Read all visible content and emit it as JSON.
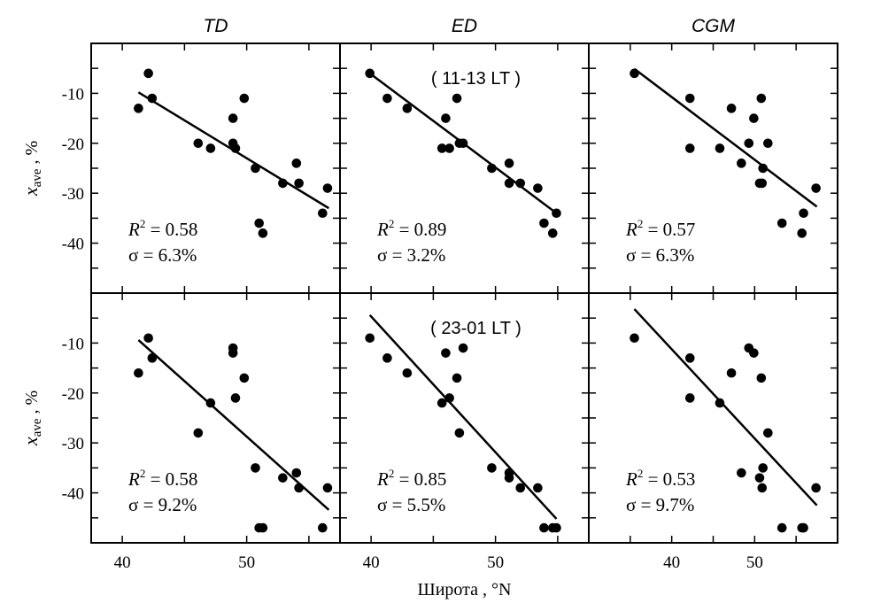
{
  "chart_data": {
    "type": "scatter",
    "layout": "2 rows x 3 columns",
    "column_titles": [
      "TD",
      "ED",
      "CGM"
    ],
    "row_labels": [
      "( 11-13 LT )",
      "( 23-01 LT )"
    ],
    "xlabel": "Широта ,  °N",
    "ylabel": {
      "symbol": "x",
      "subscript": "ave",
      "unit": " ,  %"
    },
    "ylim": [
      -50,
      0
    ],
    "yticks": [
      -10,
      -20,
      -30,
      -40
    ],
    "grid": false,
    "marker_color": "#000000",
    "line_color": "#000000",
    "panels": [
      {
        "column": "TD",
        "row": 0,
        "xlim": [
          37.5,
          57.5
        ],
        "xticks": [
          40,
          50
        ],
        "r2_label": "R",
        "r2_value": " = 0.58",
        "sigma_label": "σ = 6.3%",
        "fit": [
          [
            41.3,
            -9.8
          ],
          [
            56.6,
            -33.0
          ]
        ],
        "points": [
          [
            41.3,
            -13
          ],
          [
            42.1,
            -6
          ],
          [
            42.4,
            -11
          ],
          [
            46.1,
            -20
          ],
          [
            47.1,
            -21
          ],
          [
            48.9,
            -15
          ],
          [
            48.9,
            -20
          ],
          [
            49.1,
            -21
          ],
          [
            49.8,
            -11
          ],
          [
            50.7,
            -25
          ],
          [
            51.0,
            -36
          ],
          [
            51.3,
            -38
          ],
          [
            52.9,
            -28
          ],
          [
            54.0,
            -24
          ],
          [
            54.2,
            -28
          ],
          [
            56.1,
            -34
          ],
          [
            56.5,
            -29
          ]
        ]
      },
      {
        "column": "ED",
        "row": 0,
        "xlim": [
          37.5,
          57.5
        ],
        "xticks": [
          40,
          50
        ],
        "r2_label": "R",
        "r2_value": " = 0.89",
        "sigma_label": "σ = 3.2%",
        "fit": [
          [
            39.9,
            -6.0
          ],
          [
            54.9,
            -34.0
          ]
        ],
        "points": [
          [
            39.9,
            -6
          ],
          [
            41.3,
            -11
          ],
          [
            42.9,
            -13
          ],
          [
            45.7,
            -21
          ],
          [
            46.0,
            -15
          ],
          [
            46.3,
            -21
          ],
          [
            46.9,
            -11
          ],
          [
            47.1,
            -20
          ],
          [
            47.4,
            -20
          ],
          [
            49.7,
            -25
          ],
          [
            51.1,
            -24
          ],
          [
            51.1,
            -28
          ],
          [
            52.0,
            -28
          ],
          [
            53.4,
            -29
          ],
          [
            53.9,
            -36
          ],
          [
            54.6,
            -38
          ],
          [
            54.9,
            -34
          ]
        ]
      },
      {
        "column": "CGM",
        "row": 0,
        "xlim": [
          30,
          60
        ],
        "xticks": [
          40,
          50
        ],
        "r2_label": "R",
        "r2_value": " = 0.57",
        "sigma_label": "σ = 6.3%",
        "fit": [
          [
            35.5,
            -5.1
          ],
          [
            57.5,
            -32.7
          ]
        ],
        "points": [
          [
            35.5,
            -6
          ],
          [
            42.2,
            -11
          ],
          [
            42.2,
            -21
          ],
          [
            45.8,
            -21
          ],
          [
            47.2,
            -13
          ],
          [
            48.4,
            -24
          ],
          [
            49.3,
            -20
          ],
          [
            49.9,
            -15
          ],
          [
            50.8,
            -11
          ],
          [
            51.0,
            -25
          ],
          [
            50.6,
            -28
          ],
          [
            50.9,
            -28
          ],
          [
            51.6,
            -20
          ],
          [
            53.3,
            -36
          ],
          [
            55.7,
            -38
          ],
          [
            55.9,
            -34
          ],
          [
            57.4,
            -29
          ]
        ]
      },
      {
        "column": "TD",
        "row": 1,
        "xlim": [
          37.5,
          57.5
        ],
        "xticks": [
          40,
          50
        ],
        "r2_label": "R",
        "r2_value": " = 0.58",
        "sigma_label": "σ = 9.2%",
        "fit": [
          [
            41.3,
            -9.4
          ],
          [
            56.6,
            -43.4
          ]
        ],
        "points": [
          [
            41.3,
            -16
          ],
          [
            42.1,
            -9
          ],
          [
            42.4,
            -13
          ],
          [
            46.1,
            -28
          ],
          [
            47.1,
            -22
          ],
          [
            48.9,
            -11
          ],
          [
            48.9,
            -12
          ],
          [
            49.1,
            -21
          ],
          [
            49.8,
            -17
          ],
          [
            50.7,
            -35
          ],
          [
            51.0,
            -47
          ],
          [
            51.3,
            -47
          ],
          [
            52.9,
            -37
          ],
          [
            54.0,
            -36
          ],
          [
            54.2,
            -39
          ],
          [
            56.1,
            -47
          ],
          [
            56.5,
            -39
          ]
        ]
      },
      {
        "column": "ED",
        "row": 1,
        "xlim": [
          37.5,
          57.5
        ],
        "xticks": [
          40,
          50
        ],
        "r2_label": "R",
        "r2_value": " = 0.85",
        "sigma_label": "σ = 5.5%",
        "fit": [
          [
            39.9,
            -4.4
          ],
          [
            54.9,
            -45.2
          ]
        ],
        "points": [
          [
            39.9,
            -9
          ],
          [
            41.3,
            -13
          ],
          [
            42.9,
            -16
          ],
          [
            45.7,
            -22
          ],
          [
            46.0,
            -12
          ],
          [
            46.3,
            -21
          ],
          [
            46.9,
            -17
          ],
          [
            47.1,
            -28
          ],
          [
            47.4,
            -11
          ],
          [
            49.7,
            -35
          ],
          [
            51.1,
            -36
          ],
          [
            51.1,
            -37
          ],
          [
            52.0,
            -39
          ],
          [
            53.4,
            -39
          ],
          [
            53.9,
            -47
          ],
          [
            54.6,
            -47
          ],
          [
            54.9,
            -47
          ]
        ]
      },
      {
        "column": "CGM",
        "row": 1,
        "xlim": [
          30,
          60
        ],
        "xticks": [
          40,
          50
        ],
        "r2_label": "R",
        "r2_value": " = 0.53",
        "sigma_label": "σ = 9.7%",
        "fit": [
          [
            35.5,
            -3.2
          ],
          [
            57.5,
            -42.5
          ]
        ],
        "points": [
          [
            35.5,
            -9
          ],
          [
            42.2,
            -13
          ],
          [
            42.2,
            -21
          ],
          [
            45.8,
            -22
          ],
          [
            47.2,
            -16
          ],
          [
            48.4,
            -36
          ],
          [
            49.3,
            -11
          ],
          [
            49.9,
            -12
          ],
          [
            50.8,
            -17
          ],
          [
            51.0,
            -35
          ],
          [
            50.6,
            -37
          ],
          [
            50.9,
            -39
          ],
          [
            51.6,
            -28
          ],
          [
            53.3,
            -47
          ],
          [
            55.7,
            -47
          ],
          [
            55.9,
            -47
          ],
          [
            57.4,
            -39
          ]
        ]
      }
    ]
  }
}
